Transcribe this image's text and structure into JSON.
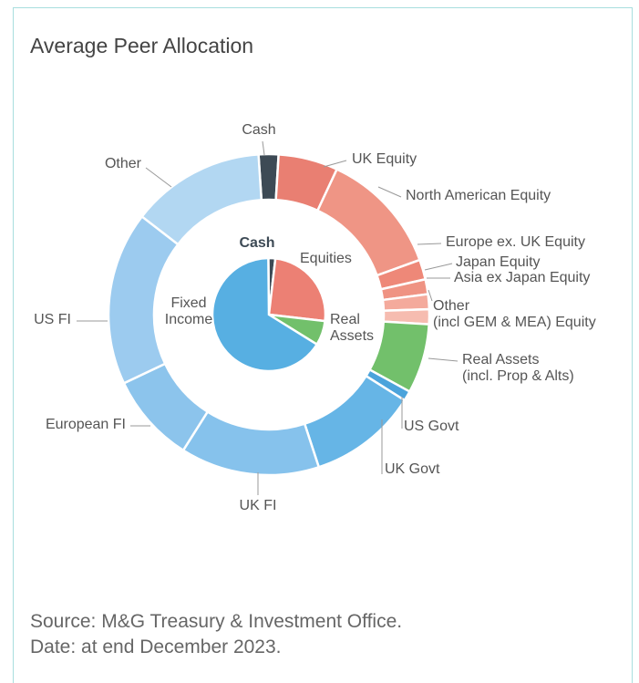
{
  "chart_data": {
    "type": "nested-donut",
    "title": "Average Peer Allocation",
    "outer": {
      "categories": [
        "Cash",
        "UK Equity",
        "North American Equity",
        "Europe ex. UK Equity",
        "Japan Equity",
        "Asia ex Japan Equity",
        "Other\n(incl GEM & MEA) Equity",
        "Real Assets\n(incl. Prop & Alts)",
        "US Govt",
        "UK Govt",
        "UK FI",
        "European FI",
        "US FI",
        "Other"
      ],
      "values": [
        2,
        6,
        12.5,
        2,
        1.5,
        1.5,
        1.5,
        7,
        1,
        11,
        14,
        9,
        17.5,
        13.5
      ],
      "colors": [
        "#3d4a55",
        "#e97f72",
        "#ef9585",
        "#ee8878",
        "#ef9383",
        "#f4aa9c",
        "#f6bcb0",
        "#72c06b",
        "#4ba3db",
        "#66b5e6",
        "#86c2ec",
        "#8cc4ec",
        "#9ccbef",
        "#b2d7f2"
      ]
    },
    "inner": {
      "categories": [
        "Cash",
        "Equities",
        "Real\nAssets",
        "Fixed\nIncome"
      ],
      "values": [
        2,
        25,
        7,
        66
      ],
      "colors": [
        "#3d4a55",
        "#ec8074",
        "#72c06b",
        "#57afe2"
      ]
    },
    "notes": [
      "Source: M&G Treasury & Investment Office.",
      "Date: at end December 2023."
    ]
  }
}
